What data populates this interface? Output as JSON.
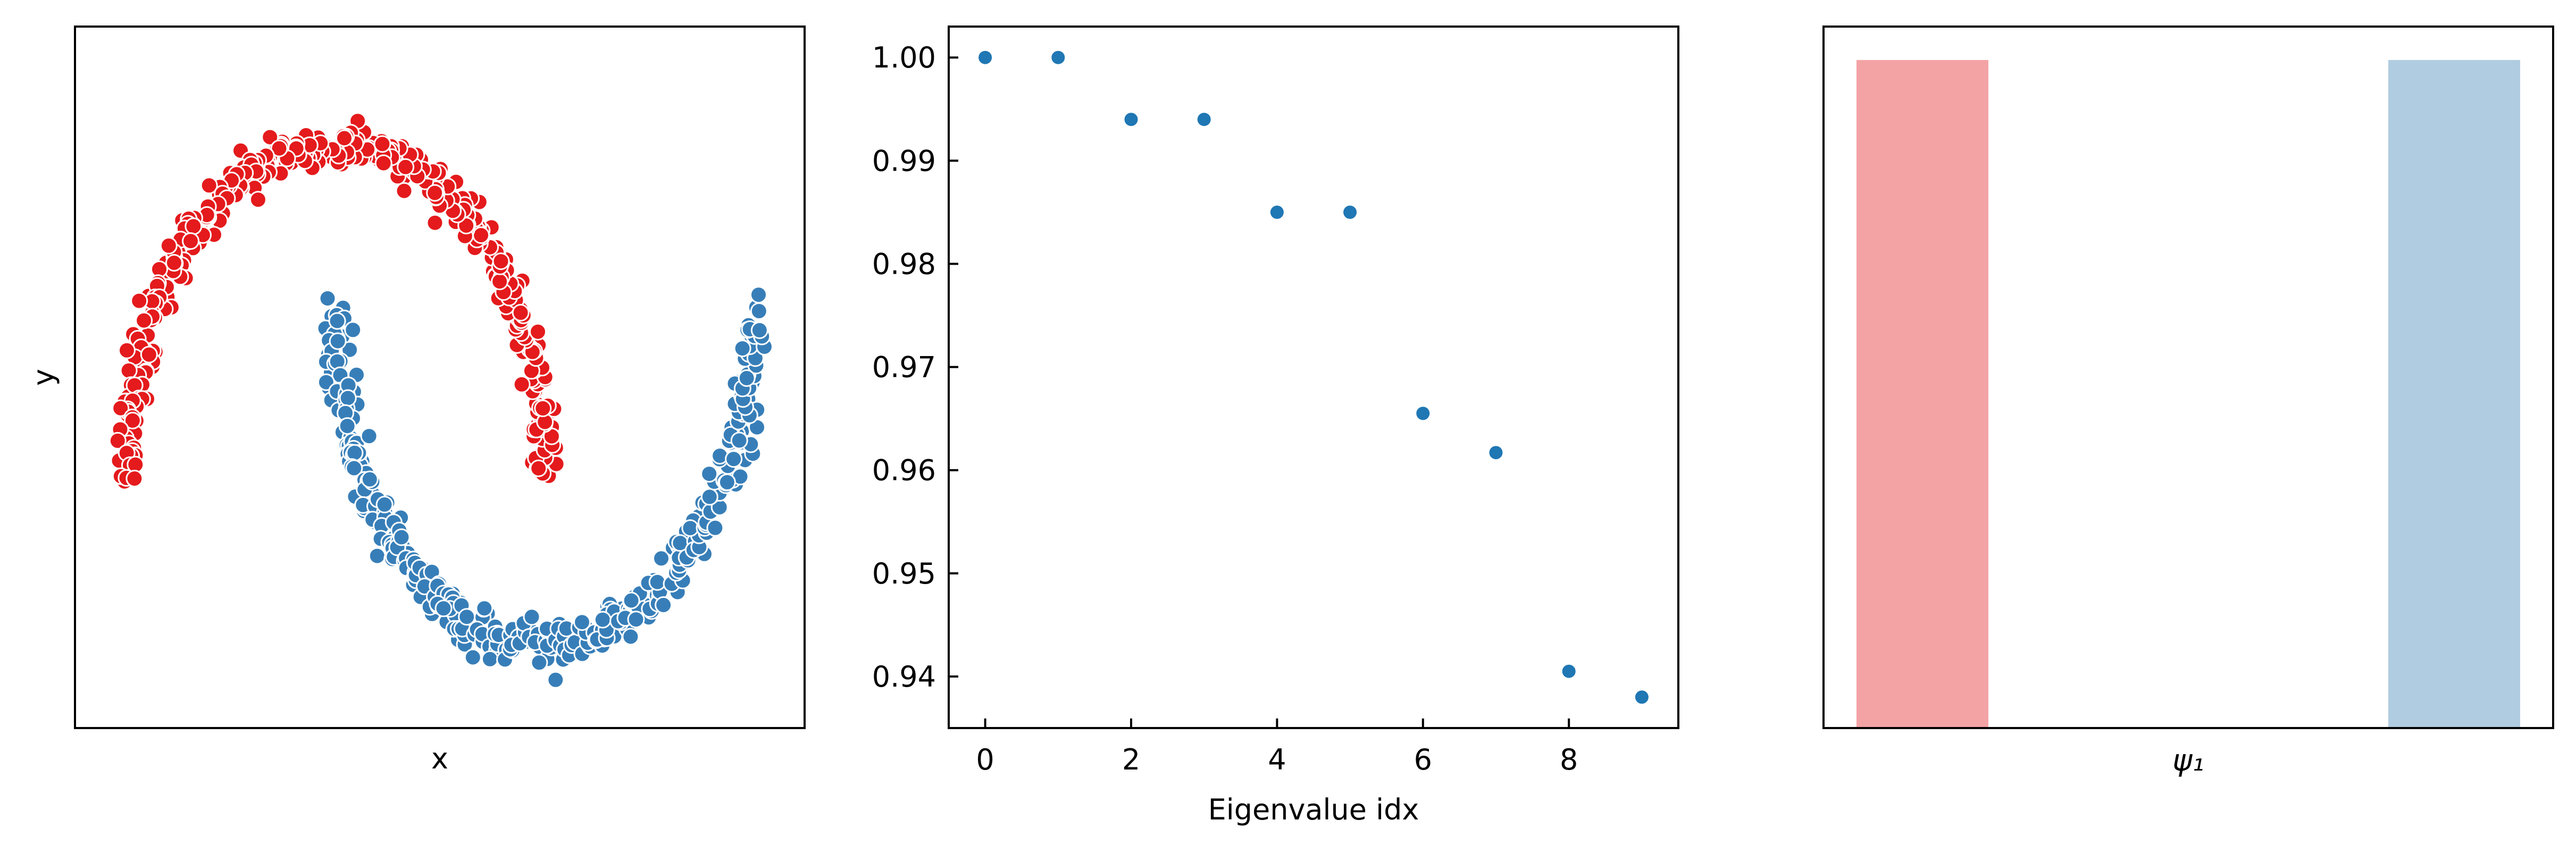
{
  "chart_data": [
    {
      "type": "scatter",
      "title": "",
      "xlabel": "x",
      "ylabel": "y",
      "xticks": "hidden",
      "yticks": "hidden",
      "xlim": [
        -1.25,
        2.25
      ],
      "ylim": [
        -0.75,
        1.35
      ],
      "series": [
        {
          "color": "#e41a1c",
          "curve": "upper-moon"
        },
        {
          "color": "#377eb8",
          "curve": "lower-moon"
        }
      ]
    },
    {
      "type": "scatter",
      "title": "",
      "xlabel": "Eigenvalue idx",
      "ylabel": "",
      "xlim": [
        -0.5,
        9.5
      ],
      "ylim": [
        0.935,
        1.003
      ],
      "xticks": [
        0,
        2,
        4,
        6,
        8
      ],
      "xtick_labels": [
        "0",
        "2",
        "4",
        "6",
        "8"
      ],
      "yticks": [
        0.94,
        0.95,
        0.96,
        0.97,
        0.98,
        0.99,
        1.0
      ],
      "ytick_labels": [
        "0.94",
        "0.95",
        "0.96",
        "0.97",
        "0.98",
        "0.99",
        "1.00"
      ],
      "point_color": "#1f77b4",
      "x": [
        0,
        1,
        2,
        3,
        4,
        5,
        6,
        7,
        8,
        9
      ],
      "y": [
        1.0,
        1.0,
        0.994,
        0.994,
        0.985,
        0.985,
        0.9655,
        0.9617,
        0.9405,
        0.938
      ]
    },
    {
      "type": "bar",
      "title": "",
      "xlabel": "ψ₁",
      "ylabel": "",
      "xticks": "hidden",
      "yticks": "hidden",
      "categories": [
        "left",
        "right"
      ],
      "values": [
        1.0,
        1.0
      ],
      "ylim": [
        0,
        1.05
      ],
      "colors": [
        "#f4a3a5",
        "#b0cce1"
      ]
    }
  ]
}
